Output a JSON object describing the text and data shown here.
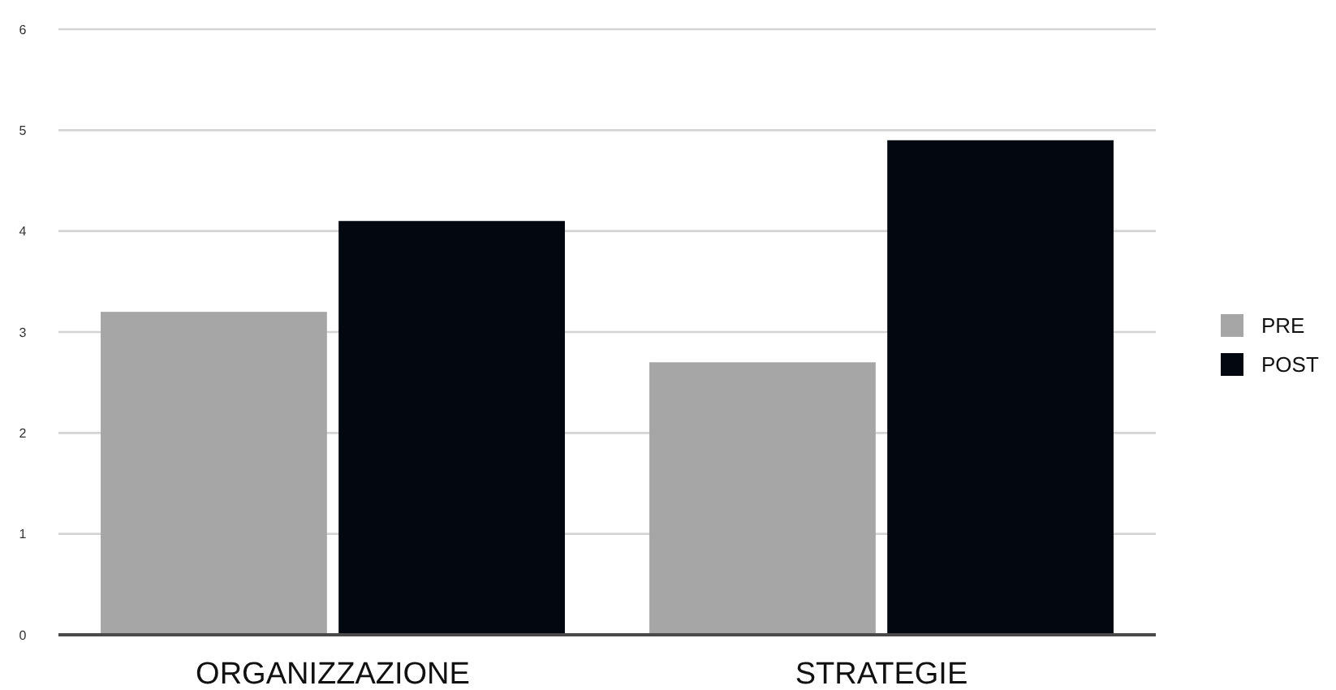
{
  "chart_data": {
    "type": "bar",
    "categories": [
      "ORGANIZZAZIONE",
      "STRATEGIE"
    ],
    "series": [
      {
        "name": "PRE",
        "color": "#a6a6a6",
        "values": [
          3.2,
          2.7
        ]
      },
      {
        "name": "POST",
        "color": "#03070f",
        "values": [
          4.1,
          4.9
        ]
      }
    ],
    "ylim": [
      0,
      6
    ],
    "yticks": [
      0,
      1,
      2,
      3,
      4,
      5,
      6
    ],
    "grid": "y",
    "legend": "right"
  }
}
